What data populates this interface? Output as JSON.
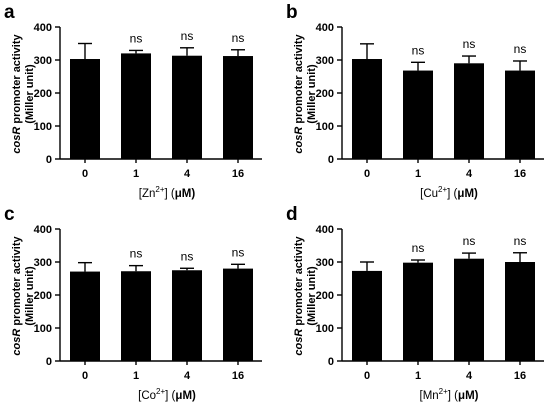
{
  "figure": {
    "ylabel_italic": "cosR",
    "ylabel_rest": " promoter activity",
    "ylabel_line2": "(Miller unit)"
  },
  "chart_data": [
    {
      "type": "bar",
      "panel": "a",
      "categories": [
        "0",
        "1",
        "4",
        "16"
      ],
      "values": [
        303,
        320,
        313,
        312
      ],
      "errors": [
        47,
        9,
        24,
        19
      ],
      "annotations": [
        "",
        "ns",
        "ns",
        "ns"
      ],
      "ylim": [
        0,
        400
      ],
      "yticks": [
        "0",
        "100",
        "200",
        "300",
        "400"
      ],
      "ylabel": "cosR promoter activity (Miller unit)",
      "xlabel_parts": [
        "[Zn",
        "2+",
        "] (",
        "μ",
        "M)"
      ],
      "color": "#000000"
    },
    {
      "type": "bar",
      "panel": "b",
      "categories": [
        "0",
        "1",
        "4",
        "16"
      ],
      "values": [
        303,
        268,
        290,
        268
      ],
      "errors": [
        46,
        25,
        22,
        29
      ],
      "annotations": [
        "",
        "ns",
        "ns",
        "ns"
      ],
      "ylim": [
        0,
        400
      ],
      "yticks": [
        "0",
        "100",
        "200",
        "300",
        "400"
      ],
      "ylabel": "cosR promoter activity (Miller unit)",
      "xlabel_parts": [
        "[Cu",
        "2+",
        "] (",
        "μ",
        "M)"
      ],
      "color": "#000000"
    },
    {
      "type": "bar",
      "panel": "c",
      "categories": [
        "0",
        "1",
        "4",
        "16"
      ],
      "values": [
        271,
        272,
        275,
        280
      ],
      "errors": [
        27,
        17,
        6,
        13
      ],
      "annotations": [
        "",
        "ns",
        "ns",
        "ns"
      ],
      "ylim": [
        0,
        400
      ],
      "yticks": [
        "0",
        "100",
        "200",
        "300",
        "400"
      ],
      "ylabel": "cosR promoter activity (Miller unit)",
      "xlabel_parts": [
        "[Co",
        "2+",
        "] (",
        "μ",
        "M)"
      ],
      "color": "#000000"
    },
    {
      "type": "bar",
      "panel": "d",
      "categories": [
        "0",
        "1",
        "4",
        "16"
      ],
      "values": [
        273,
        298,
        310,
        300
      ],
      "errors": [
        27,
        8,
        17,
        28
      ],
      "annotations": [
        "",
        "ns",
        "ns",
        "ns"
      ],
      "ylim": [
        0,
        400
      ],
      "yticks": [
        "0",
        "100",
        "200",
        "300",
        "400"
      ],
      "ylabel": "cosR promoter activity (Miller unit)",
      "xlabel_parts": [
        "[Mn",
        "2+",
        "] (",
        "μ",
        "M)"
      ],
      "color": "#000000"
    }
  ]
}
